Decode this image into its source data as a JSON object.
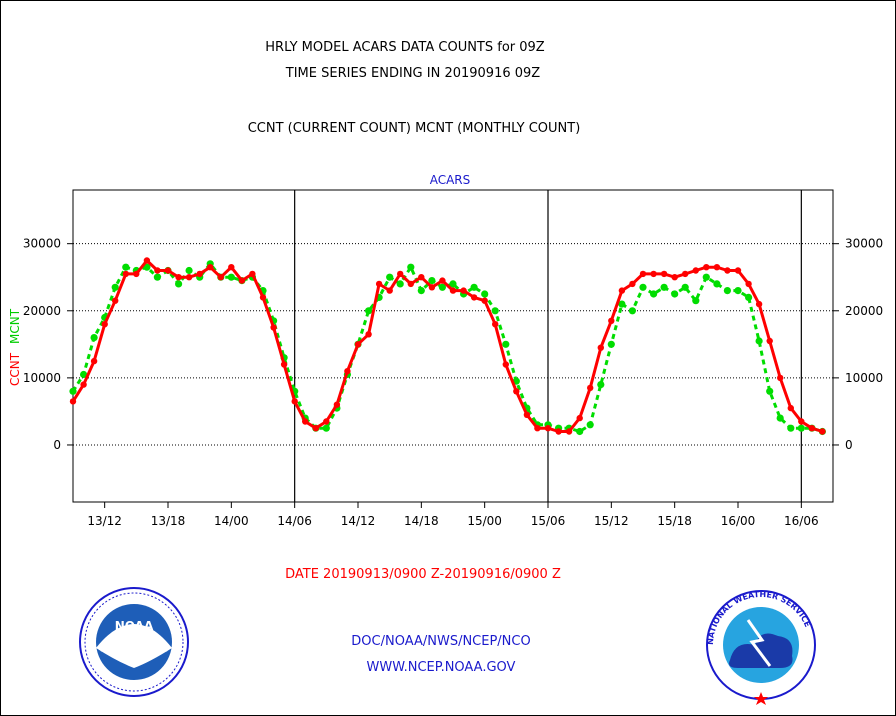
{
  "header": {
    "title_line1": "HRLY MODEL ACARS DATA COUNTS for 09Z",
    "title_line2": "TIME SERIES ENDING IN 20190916 09Z",
    "subtitle": "CCNT (CURRENT COUNT) MCNT (MONTHLY COUNT)"
  },
  "footer": {
    "date_range": "DATE 20190913/0900 Z-20190916/0900 Z",
    "org_line": "DOC/NOAA/NWS/NCEP/NCO",
    "url": "WWW.NCEP.NOAA.GOV",
    "noaa_logo_text": "NOAA",
    "nws_logo_text": "NATIONAL WEATHER SERVICE"
  },
  "colors": {
    "ccnt": "#ff0000",
    "mcnt": "#00dd00",
    "label_blue": "#1a1acc"
  },
  "chart_data": {
    "type": "line",
    "title": "ACARS",
    "ylabel_ccnt": "CCNT",
    "ylabel_mcnt": "MCNT",
    "x_ticks": [
      "13/12",
      "13/18",
      "14/00",
      "14/06",
      "14/12",
      "14/18",
      "15/00",
      "15/06",
      "15/12",
      "15/18",
      "16/00",
      "16/06"
    ],
    "y_ticks": [
      0,
      10000,
      20000,
      30000
    ],
    "ylim": [
      -8500,
      38000
    ],
    "x_unit": "hours since 13/09Z",
    "xlim": [
      0,
      72
    ],
    "day_boundaries_hours": [
      21,
      45,
      69
    ],
    "grid": "horizontal",
    "series": [
      {
        "name": "CCNT",
        "values": [
          6500,
          9000,
          12500,
          18000,
          21500,
          25500,
          25500,
          27500,
          26000,
          26000,
          25000,
          25000,
          25500,
          26500,
          25000,
          26500,
          24500,
          25500,
          22000,
          17500,
          12000,
          6500,
          3500,
          2500,
          3500,
          6000,
          11000,
          15000,
          16500,
          24000,
          23000,
          25500,
          24000,
          25000,
          23500,
          24500,
          23000,
          23000,
          22000,
          21500,
          18000,
          12000,
          8000,
          4500,
          2500,
          2500,
          2000,
          2000,
          4000,
          8500,
          14500,
          18500,
          23000,
          24000,
          25500,
          25500,
          25500,
          25000,
          25500,
          26000,
          26500,
          26500,
          26000,
          26000,
          24000,
          21000,
          15500,
          10000,
          5500,
          3500,
          2500,
          2000
        ]
      },
      {
        "name": "MCNT",
        "values": [
          8000,
          10500,
          16000,
          19000,
          23500,
          26500,
          26000,
          26500,
          25000,
          26000,
          24000,
          26000,
          25000,
          27000,
          25000,
          25000,
          24500,
          25000,
          23000,
          18500,
          13000,
          8000,
          4000,
          2500,
          2500,
          5500,
          10500,
          15000,
          20000,
          22000,
          25000,
          24000,
          26500,
          23000,
          24500,
          23500,
          24000,
          22500,
          23500,
          22500,
          20000,
          15000,
          9500,
          5500,
          3000,
          3000,
          2500,
          2500,
          2000,
          3000,
          9000,
          15000,
          21000,
          20000,
          23500,
          22500,
          23500,
          22500,
          23500,
          21500,
          25000,
          24000,
          23000,
          23000,
          22000,
          15500,
          8000,
          4000,
          2500,
          2500,
          2500,
          2000
        ]
      }
    ]
  }
}
